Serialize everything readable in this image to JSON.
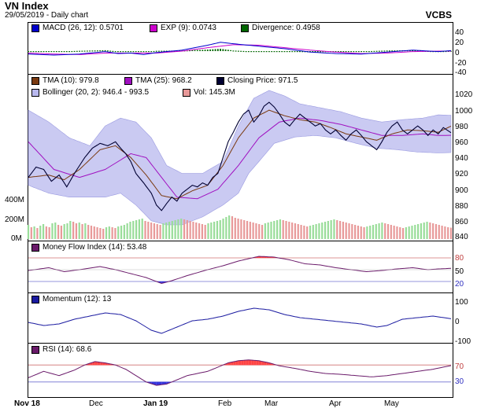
{
  "header": {
    "title": "VN Index",
    "subtitle": "29/05/2019 - Daily chart",
    "broker": "VCBS"
  },
  "colors": {
    "macd": "#0000cc",
    "exp": "#cc00cc",
    "divergence": "#006600",
    "tma10": "#7a3a10",
    "tma25": "#a010c0",
    "close": "#000033",
    "bollinger_fill": "#b8b8ee",
    "vol_up": "#99dd99",
    "vol_down": "#e89999",
    "mfi": "#6a1a6a",
    "momentum": "#1a1aa0",
    "rsi": "#6a1a6a",
    "overbought_fill": "#ff4444",
    "oversold_fill": "#3333dd"
  },
  "chart_data": [
    {
      "type": "line",
      "name": "macd-panel",
      "legend": [
        "MACD (26, 12): 0.5701",
        "EXP (9): 0.0743",
        "Divergence: 0.4958"
      ],
      "yticks": [
        "40",
        "20",
        "0",
        "-20",
        "-40"
      ],
      "ylim": [
        -40,
        40
      ],
      "macd_keys": [
        [
          0,
          -6
        ],
        [
          10,
          -8
        ],
        [
          20,
          -6
        ],
        [
          30,
          -1
        ],
        [
          35,
          -5
        ],
        [
          40,
          -4
        ],
        [
          45,
          -7
        ],
        [
          50,
          -3
        ],
        [
          60,
          2
        ],
        [
          70,
          12
        ],
        [
          75,
          18
        ],
        [
          80,
          15
        ],
        [
          90,
          10
        ],
        [
          100,
          5
        ],
        [
          110,
          -2
        ],
        [
          120,
          -5
        ],
        [
          130,
          -6
        ],
        [
          140,
          -2
        ],
        [
          150,
          2
        ],
        [
          160,
          -1
        ],
        [
          165,
          1
        ]
      ],
      "exp_keys": [
        [
          0,
          -4
        ],
        [
          10,
          -6
        ],
        [
          20,
          -7
        ],
        [
          30,
          -4
        ],
        [
          40,
          -4
        ],
        [
          50,
          -4
        ],
        [
          60,
          0
        ],
        [
          70,
          7
        ],
        [
          80,
          13
        ],
        [
          90,
          12
        ],
        [
          100,
          7
        ],
        [
          110,
          2
        ],
        [
          120,
          -2
        ],
        [
          130,
          -5
        ],
        [
          140,
          -4
        ],
        [
          150,
          -1
        ],
        [
          160,
          0
        ],
        [
          165,
          0
        ]
      ]
    },
    {
      "type": "line",
      "name": "price-panel",
      "legend": [
        "TMA (10): 979.8",
        "TMA (25): 968.2",
        "Closing Price: 971.5",
        "Bollinger (20, 2): 946.4 - 993.5",
        "Vol: 145.3M"
      ],
      "yticks": [
        "1020",
        "1000",
        "980",
        "960",
        "940",
        "920",
        "900",
        "880",
        "860",
        "840"
      ],
      "ylim": [
        840,
        1020
      ],
      "vol_ticks": [
        "400M",
        "200M",
        "0M"
      ],
      "vol_lim": [
        0,
        500
      ],
      "x_labels": [
        "Nov 18",
        "Dec",
        "Jan 19",
        "Feb",
        "Mar",
        "Apr",
        "May"
      ],
      "close_keys": [
        [
          0,
          915
        ],
        [
          3,
          928
        ],
        [
          6,
          925
        ],
        [
          9,
          910
        ],
        [
          12,
          918
        ],
        [
          15,
          903
        ],
        [
          18,
          920
        ],
        [
          22,
          940
        ],
        [
          25,
          952
        ],
        [
          28,
          958
        ],
        [
          31,
          955
        ],
        [
          34,
          960
        ],
        [
          36,
          952
        ],
        [
          38,
          945
        ],
        [
          40,
          935
        ],
        [
          42,
          920
        ],
        [
          45,
          908
        ],
        [
          48,
          895
        ],
        [
          50,
          880
        ],
        [
          52,
          873
        ],
        [
          54,
          882
        ],
        [
          56,
          890
        ],
        [
          58,
          885
        ],
        [
          60,
          895
        ],
        [
          62,
          900
        ],
        [
          64,
          905
        ],
        [
          66,
          903
        ],
        [
          68,
          908
        ],
        [
          70,
          905
        ],
        [
          72,
          915
        ],
        [
          74,
          920
        ],
        [
          76,
          940
        ],
        [
          78,
          960
        ],
        [
          80,
          972
        ],
        [
          82,
          985
        ],
        [
          84,
          995
        ],
        [
          86,
          1000
        ],
        [
          88,
          985
        ],
        [
          90,
          993
        ],
        [
          92,
          1005
        ],
        [
          94,
          1010
        ],
        [
          96,
          1004
        ],
        [
          98,
          995
        ],
        [
          100,
          985
        ],
        [
          102,
          980
        ],
        [
          104,
          988
        ],
        [
          106,
          995
        ],
        [
          108,
          990
        ],
        [
          110,
          985
        ],
        [
          112,
          980
        ],
        [
          114,
          983
        ],
        [
          116,
          975
        ],
        [
          118,
          970
        ],
        [
          120,
          975
        ],
        [
          122,
          968
        ],
        [
          124,
          962
        ],
        [
          126,
          970
        ],
        [
          128,
          975
        ],
        [
          130,
          968
        ],
        [
          132,
          960
        ],
        [
          134,
          955
        ],
        [
          136,
          950
        ],
        [
          138,
          960
        ],
        [
          140,
          972
        ],
        [
          142,
          980
        ],
        [
          144,
          985
        ],
        [
          146,
          975
        ],
        [
          148,
          970
        ],
        [
          150,
          975
        ],
        [
          152,
          980
        ],
        [
          154,
          975
        ],
        [
          156,
          968
        ],
        [
          158,
          975
        ],
        [
          160,
          970
        ],
        [
          162,
          978
        ],
        [
          165,
          971.5
        ]
      ],
      "tma10_keys": [
        [
          0,
          915
        ],
        [
          8,
          918
        ],
        [
          14,
          912
        ],
        [
          20,
          925
        ],
        [
          28,
          950
        ],
        [
          34,
          955
        ],
        [
          40,
          940
        ],
        [
          46,
          918
        ],
        [
          52,
          892
        ],
        [
          58,
          888
        ],
        [
          64,
          898
        ],
        [
          70,
          905
        ],
        [
          76,
          930
        ],
        [
          82,
          965
        ],
        [
          88,
          990
        ],
        [
          94,
          1000
        ],
        [
          100,
          993
        ],
        [
          106,
          988
        ],
        [
          112,
          985
        ],
        [
          118,
          978
        ],
        [
          124,
          970
        ],
        [
          130,
          966
        ],
        [
          136,
          962
        ],
        [
          142,
          970
        ],
        [
          148,
          975
        ],
        [
          154,
          974
        ],
        [
          160,
          972
        ],
        [
          165,
          979.8
        ]
      ],
      "tma25_keys": [
        [
          0,
          960
        ],
        [
          10,
          925
        ],
        [
          20,
          915
        ],
        [
          30,
          925
        ],
        [
          40,
          945
        ],
        [
          46,
          940
        ],
        [
          52,
          915
        ],
        [
          58,
          890
        ],
        [
          66,
          888
        ],
        [
          74,
          900
        ],
        [
          82,
          930
        ],
        [
          90,
          965
        ],
        [
          98,
          985
        ],
        [
          106,
          990
        ],
        [
          114,
          987
        ],
        [
          122,
          982
        ],
        [
          130,
          975
        ],
        [
          138,
          968
        ],
        [
          146,
          968
        ],
        [
          154,
          970
        ],
        [
          160,
          968
        ],
        [
          165,
          968.2
        ]
      ],
      "boll_up_keys": [
        [
          0,
          1000
        ],
        [
          8,
          985
        ],
        [
          16,
          965
        ],
        [
          24,
          955
        ],
        [
          30,
          980
        ],
        [
          36,
          990
        ],
        [
          42,
          985
        ],
        [
          48,
          965
        ],
        [
          54,
          930
        ],
        [
          60,
          920
        ],
        [
          68,
          920
        ],
        [
          76,
          935
        ],
        [
          82,
          980
        ],
        [
          88,
          1015
        ],
        [
          94,
          1025
        ],
        [
          100,
          1018
        ],
        [
          106,
          1008
        ],
        [
          114,
          1003
        ],
        [
          122,
          998
        ],
        [
          130,
          990
        ],
        [
          138,
          985
        ],
        [
          146,
          988
        ],
        [
          154,
          990
        ],
        [
          160,
          994
        ],
        [
          165,
          993.5
        ]
      ],
      "boll_low_keys": [
        [
          0,
          905
        ],
        [
          8,
          895
        ],
        [
          16,
          890
        ],
        [
          24,
          890
        ],
        [
          30,
          890
        ],
        [
          36,
          895
        ],
        [
          42,
          880
        ],
        [
          48,
          860
        ],
        [
          54,
          855
        ],
        [
          60,
          855
        ],
        [
          68,
          865
        ],
        [
          76,
          880
        ],
        [
          82,
          895
        ],
        [
          86,
          920
        ],
        [
          90,
          935
        ],
        [
          96,
          958
        ],
        [
          104,
          966
        ],
        [
          112,
          968
        ],
        [
          120,
          965
        ],
        [
          128,
          958
        ],
        [
          136,
          952
        ],
        [
          144,
          950
        ],
        [
          152,
          947
        ],
        [
          160,
          946
        ],
        [
          165,
          946.4
        ]
      ],
      "volume_samples": [
        180,
        150,
        160,
        140,
        170,
        190,
        160,
        150,
        200,
        210,
        180,
        170,
        190,
        200,
        230,
        220,
        200,
        210,
        190,
        200,
        180,
        170,
        160,
        150,
        140,
        130,
        150,
        160,
        150,
        140,
        160,
        170,
        180,
        200,
        220,
        230,
        240,
        250,
        260,
        230,
        220,
        210,
        200,
        190,
        180,
        200,
        210,
        220,
        230,
        240,
        250,
        260,
        250,
        240,
        230,
        220,
        210,
        200,
        190,
        180,
        200,
        210,
        220,
        230,
        240,
        260,
        280,
        300,
        290,
        270,
        260,
        250,
        240,
        230,
        220,
        210,
        200,
        190,
        180,
        200,
        210,
        220,
        230,
        240,
        250,
        240,
        230,
        220,
        210,
        200,
        190,
        180,
        170,
        160,
        170,
        180,
        190,
        200,
        210,
        220,
        230,
        240,
        250,
        240,
        230,
        220,
        210,
        200,
        190,
        180,
        170,
        160,
        150,
        160,
        170,
        180,
        190,
        200,
        210,
        200,
        190,
        180,
        170,
        160,
        150,
        140,
        150,
        160,
        170,
        180,
        190,
        200,
        210,
        220,
        210,
        200,
        190,
        180,
        170,
        160,
        150,
        145
      ]
    },
    {
      "type": "line",
      "name": "mfi-panel",
      "legend": [
        "Money Flow Index (14): 53.48"
      ],
      "yticks": [
        "80",
        "50",
        "20"
      ],
      "ylim": [
        0,
        100
      ],
      "keys": [
        [
          0,
          48
        ],
        [
          8,
          55
        ],
        [
          14,
          45
        ],
        [
          20,
          50
        ],
        [
          28,
          58
        ],
        [
          34,
          50
        ],
        [
          40,
          40
        ],
        [
          46,
          30
        ],
        [
          52,
          15
        ],
        [
          56,
          22
        ],
        [
          62,
          35
        ],
        [
          70,
          50
        ],
        [
          76,
          60
        ],
        [
          82,
          72
        ],
        [
          86,
          78
        ],
        [
          90,
          84
        ],
        [
          96,
          82
        ],
        [
          102,
          75
        ],
        [
          108,
          65
        ],
        [
          114,
          62
        ],
        [
          120,
          55
        ],
        [
          126,
          50
        ],
        [
          132,
          45
        ],
        [
          138,
          48
        ],
        [
          144,
          52
        ],
        [
          150,
          55
        ],
        [
          156,
          50
        ],
        [
          160,
          52
        ],
        [
          165,
          53.48
        ]
      ]
    },
    {
      "type": "line",
      "name": "momentum-panel",
      "legend": [
        "Momentum (12): 13"
      ],
      "yticks": [
        "100",
        "0",
        "-100"
      ],
      "ylim": [
        -120,
        120
      ],
      "keys": [
        [
          0,
          -10
        ],
        [
          6,
          -30
        ],
        [
          12,
          -20
        ],
        [
          18,
          10
        ],
        [
          24,
          30
        ],
        [
          30,
          50
        ],
        [
          36,
          40
        ],
        [
          42,
          0
        ],
        [
          48,
          -60
        ],
        [
          52,
          -80
        ],
        [
          58,
          -40
        ],
        [
          64,
          0
        ],
        [
          70,
          10
        ],
        [
          76,
          30
        ],
        [
          82,
          60
        ],
        [
          88,
          80
        ],
        [
          94,
          70
        ],
        [
          100,
          40
        ],
        [
          106,
          20
        ],
        [
          112,
          10
        ],
        [
          118,
          0
        ],
        [
          124,
          -10
        ],
        [
          130,
          -20
        ],
        [
          136,
          -40
        ],
        [
          140,
          -30
        ],
        [
          146,
          10
        ],
        [
          152,
          20
        ],
        [
          158,
          30
        ],
        [
          165,
          13
        ]
      ]
    },
    {
      "type": "line",
      "name": "rsi-panel",
      "legend": [
        "RSI (14): 68.6"
      ],
      "yticks": [
        "70",
        "30"
      ],
      "ylim": [
        0,
        100
      ],
      "keys": [
        [
          0,
          40
        ],
        [
          6,
          55
        ],
        [
          12,
          45
        ],
        [
          18,
          58
        ],
        [
          22,
          70
        ],
        [
          26,
          78
        ],
        [
          30,
          75
        ],
        [
          34,
          70
        ],
        [
          38,
          60
        ],
        [
          42,
          45
        ],
        [
          46,
          30
        ],
        [
          50,
          22
        ],
        [
          54,
          25
        ],
        [
          58,
          35
        ],
        [
          62,
          45
        ],
        [
          66,
          50
        ],
        [
          70,
          55
        ],
        [
          74,
          65
        ],
        [
          78,
          75
        ],
        [
          82,
          80
        ],
        [
          86,
          82
        ],
        [
          90,
          80
        ],
        [
          94,
          75
        ],
        [
          98,
          68
        ],
        [
          104,
          62
        ],
        [
          110,
          55
        ],
        [
          116,
          50
        ],
        [
          122,
          48
        ],
        [
          128,
          45
        ],
        [
          134,
          42
        ],
        [
          140,
          45
        ],
        [
          146,
          50
        ],
        [
          152,
          55
        ],
        [
          158,
          60
        ],
        [
          165,
          68.6
        ]
      ]
    }
  ]
}
